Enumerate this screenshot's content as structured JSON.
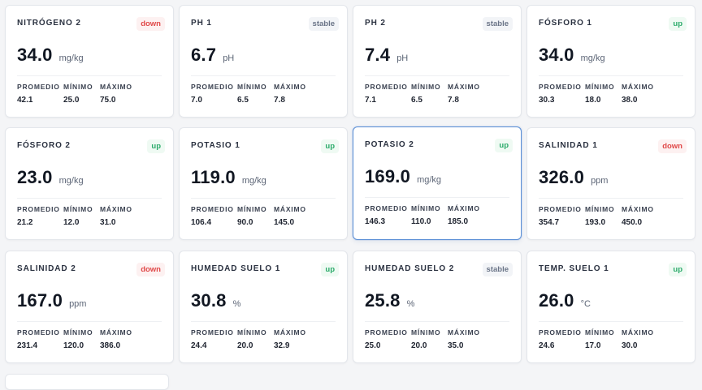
{
  "labels": {
    "promedio": "PROMEDIO",
    "minimo": "MÍNIMO",
    "maximo": "MÁXIMO"
  },
  "cards": [
    {
      "title": "NITRÓGENO 2",
      "trend": "down",
      "value": "34.0",
      "unit": "mg/kg",
      "promedio": "42.1",
      "minimo": "25.0",
      "maximo": "75.0"
    },
    {
      "title": "PH 1",
      "trend": "stable",
      "value": "6.7",
      "unit": "pH",
      "promedio": "7.0",
      "minimo": "6.5",
      "maximo": "7.8"
    },
    {
      "title": "PH 2",
      "trend": "stable",
      "value": "7.4",
      "unit": "pH",
      "promedio": "7.1",
      "minimo": "6.5",
      "maximo": "7.8"
    },
    {
      "title": "FÓSFORO 1",
      "trend": "up",
      "value": "34.0",
      "unit": "mg/kg",
      "promedio": "30.3",
      "minimo": "18.0",
      "maximo": "38.0"
    },
    {
      "title": "FÓSFORO 2",
      "trend": "up",
      "value": "23.0",
      "unit": "mg/kg",
      "promedio": "21.2",
      "minimo": "12.0",
      "maximo": "31.0"
    },
    {
      "title": "POTASIO 1",
      "trend": "up",
      "value": "119.0",
      "unit": "mg/kg",
      "promedio": "106.4",
      "minimo": "90.0",
      "maximo": "145.0"
    },
    {
      "title": "POTASIO 2",
      "trend": "up",
      "value": "169.0",
      "unit": "mg/kg",
      "promedio": "146.3",
      "minimo": "110.0",
      "maximo": "185.0",
      "selected": true
    },
    {
      "title": "SALINIDAD 1",
      "trend": "down",
      "value": "326.0",
      "unit": "ppm",
      "promedio": "354.7",
      "minimo": "193.0",
      "maximo": "450.0"
    },
    {
      "title": "SALINIDAD 2",
      "trend": "down",
      "value": "167.0",
      "unit": "ppm",
      "promedio": "231.4",
      "minimo": "120.0",
      "maximo": "386.0"
    },
    {
      "title": "HUMEDAD SUELO 1",
      "trend": "up",
      "value": "30.8",
      "unit": "%",
      "promedio": "24.4",
      "minimo": "20.0",
      "maximo": "32.9"
    },
    {
      "title": "HUMEDAD SUELO 2",
      "trend": "stable",
      "value": "25.8",
      "unit": "%",
      "promedio": "25.0",
      "minimo": "20.0",
      "maximo": "35.0"
    },
    {
      "title": "TEMP. SUELO 1",
      "trend": "up",
      "value": "26.0",
      "unit": "°C",
      "promedio": "24.6",
      "minimo": "17.0",
      "maximo": "30.0"
    }
  ]
}
